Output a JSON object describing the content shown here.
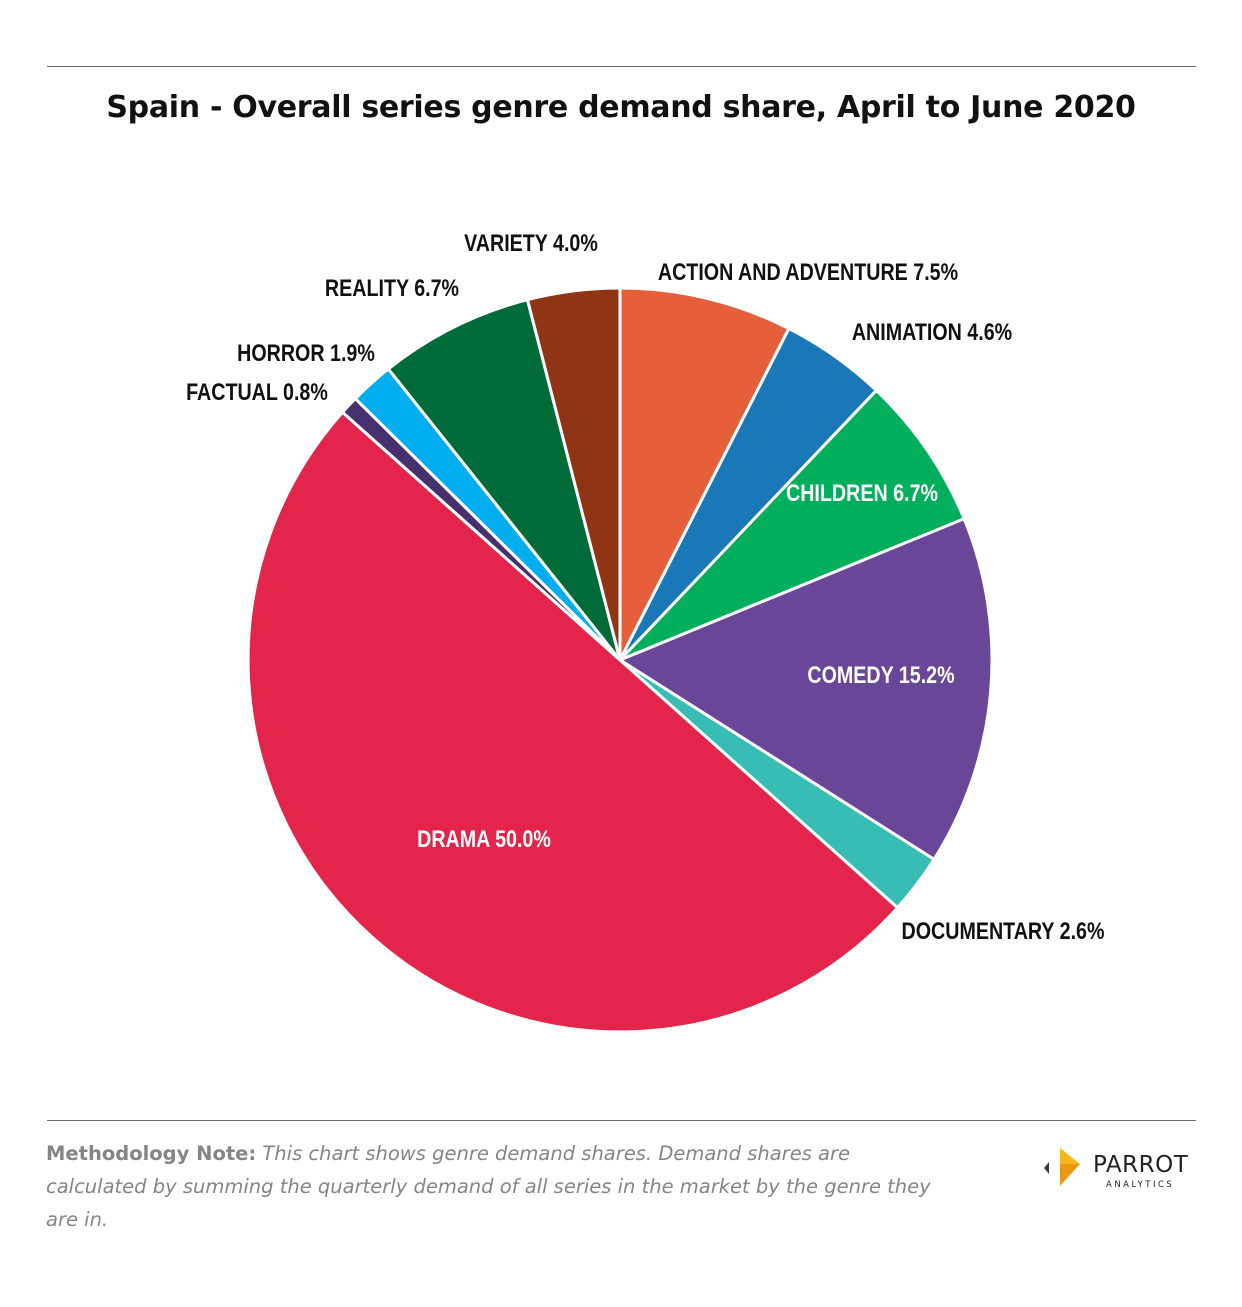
{
  "title": "Spain - Overall series genre demand share, April to June 2020",
  "chart_data": {
    "type": "pie",
    "title": "Spain - Overall series genre demand share, April to June 2020",
    "unit": "%",
    "slices": [
      {
        "label": "ACTION AND ADVENTURE 7.5%",
        "value": 7.5,
        "color": "#E5603A"
      },
      {
        "label": "ANIMATION 4.6%",
        "value": 4.6,
        "color": "#1A78B8"
      },
      {
        "label": "CHILDREN 6.7%",
        "value": 6.7,
        "color": "#00AE5B"
      },
      {
        "label": "COMEDY 15.2%",
        "value": 15.2,
        "color": "#6A4699"
      },
      {
        "label": "DOCUMENTARY 2.6%",
        "value": 2.6,
        "color": "#37BDB3"
      },
      {
        "label": "DRAMA 50.0%",
        "value": 50.0,
        "color": "#E3254C"
      },
      {
        "label": "FACTUAL 0.8%",
        "value": 0.8,
        "color": "#47306E"
      },
      {
        "label": "HORROR 1.9%",
        "value": 1.9,
        "color": "#00AEEF"
      },
      {
        "label": "REALITY 6.7%",
        "value": 6.7,
        "color": "#006B38"
      },
      {
        "label": "VARIETY 4.0%",
        "value": 4.0,
        "color": "#903416"
      }
    ]
  },
  "methodology": {
    "label": "Methodology Note:",
    "text": "This chart shows genre demand shares. Demand shares are calculated by summing the quarterly demand of all series in the market by the genre they are in."
  },
  "logo": {
    "name": "PARROT",
    "sub": "ANALYTICS",
    "color": "#F6B81C"
  }
}
